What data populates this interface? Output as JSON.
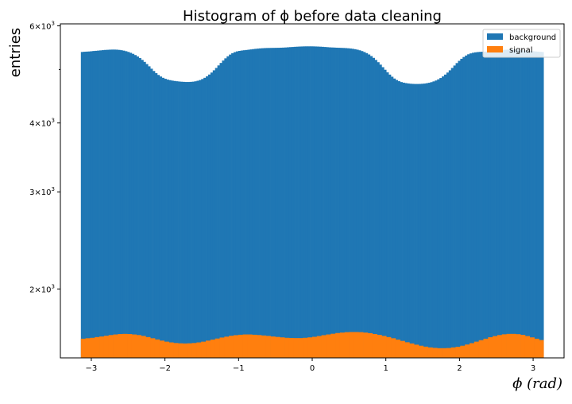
{
  "chart_data": {
    "type": "bar",
    "title": "Histogram of ϕ before data cleaning",
    "xlabel": "ϕ (rad)",
    "ylabel": "entries",
    "y_scale": "log",
    "xlim": [
      -3.42,
      3.42
    ],
    "ylim": [
      1500,
      6050
    ],
    "x_ticks": [
      -3,
      -2,
      -1,
      0,
      1,
      2,
      3
    ],
    "x_tick_labels": [
      "−3",
      "−2",
      "−1",
      "0",
      "1",
      "2",
      "3"
    ],
    "y_ticks": [
      {
        "value": 2000,
        "mantissa": "2",
        "base": "10",
        "exp": "3"
      },
      {
        "value": 3000,
        "mantissa": "3",
        "base": "10",
        "exp": "3"
      },
      {
        "value": 4000,
        "mantissa": "4",
        "base": "10",
        "exp": "3"
      },
      {
        "value": 6000,
        "mantissa": "6",
        "base": "10",
        "exp": "3"
      }
    ],
    "y_minor_ticks": [
      5000
    ],
    "stacked": false,
    "grid": false,
    "legend_position": "top-right",
    "series": [
      {
        "name": "background",
        "color": "#1f77b4",
        "x_range": [
          -3.1416,
          3.1416
        ],
        "bins": 200,
        "values": [
          5380,
          5385,
          5388,
          5391,
          5396,
          5402,
          5406,
          5411,
          5416,
          5421,
          5426,
          5429,
          5432,
          5434,
          5434,
          5432,
          5427,
          5420,
          5410,
          5397,
          5381,
          5361,
          5338,
          5311,
          5280,
          5245,
          5205,
          5162,
          5115,
          5067,
          5017,
          4969,
          4926,
          4888,
          4856,
          4830,
          4810,
          4794,
          4783,
          4774,
          4767,
          4761,
          4756,
          4752,
          4749,
          4747,
          4747,
          4749,
          4753,
          4760,
          4771,
          4785,
          4805,
          4830,
          4860,
          4896,
          4937,
          4983,
          5033,
          5086,
          5139,
          5191,
          5239,
          5284,
          5322,
          5353,
          5376,
          5393,
          5404,
          5412,
          5419,
          5425,
          5431,
          5438,
          5445,
          5451,
          5456,
          5461,
          5465,
          5468,
          5470,
          5471,
          5472,
          5473,
          5474,
          5475,
          5477,
          5479,
          5482,
          5486,
          5490,
          5493,
          5497,
          5500,
          5503,
          5505,
          5507,
          5508,
          5508,
          5508,
          5507,
          5505,
          5503,
          5500,
          5497,
          5493,
          5489,
          5485,
          5482,
          5480,
          5477,
          5475,
          5473,
          5471,
          5468,
          5464,
          5459,
          5452,
          5443,
          5432,
          5418,
          5400,
          5379,
          5354,
          5324,
          5289,
          5249,
          5204,
          5155,
          5103,
          5049,
          4995,
          4943,
          4895,
          4852,
          4815,
          4785,
          4762,
          4745,
          4733,
          4724,
          4717,
          4712,
          4709,
          4707,
          4707,
          4708,
          4711,
          4715,
          4722,
          4731,
          4743,
          4758,
          4776,
          4799,
          4826,
          4858,
          4895,
          4937,
          4983,
          5033,
          5084,
          5136,
          5184,
          5229,
          5268,
          5301,
          5328,
          5348,
          5362,
          5372,
          5378,
          5382,
          5385,
          5388,
          5391,
          5394,
          5398,
          5403,
          5408,
          5414,
          5420,
          5425,
          5430,
          5433,
          5434,
          5434,
          5433,
          5430,
          5426,
          5421,
          5416,
          5411,
          5406,
          5401,
          5396,
          5391,
          5387,
          5383,
          5380
        ]
      },
      {
        "name": "signal",
        "color": "#ff7f0e",
        "x_range": [
          -3.1416,
          3.1416
        ],
        "bins": 100,
        "values": [
          1625,
          1628,
          1631,
          1636,
          1640,
          1645,
          1650,
          1654,
          1657,
          1658,
          1657,
          1654,
          1650,
          1644,
          1636,
          1628,
          1620,
          1612,
          1605,
          1600,
          1596,
          1594,
          1593,
          1594,
          1596,
          1600,
          1605,
          1612,
          1619,
          1626,
          1633,
          1639,
          1645,
          1649,
          1652,
          1654,
          1654,
          1652,
          1650,
          1647,
          1644,
          1640,
          1637,
          1634,
          1631,
          1630,
          1629,
          1629,
          1631,
          1634,
          1638,
          1643,
          1649,
          1654,
          1659,
          1664,
          1667,
          1670,
          1671,
          1671,
          1670,
          1667,
          1663,
          1657,
          1651,
          1644,
          1636,
          1628,
          1619,
          1610,
          1601,
          1593,
          1585,
          1578,
          1572,
          1567,
          1564,
          1562,
          1562,
          1563,
          1567,
          1571,
          1578,
          1586,
          1595,
          1605,
          1615,
          1625,
          1635,
          1643,
          1650,
          1655,
          1658,
          1658,
          1656,
          1651,
          1643,
          1634,
          1625,
          1616
        ]
      }
    ]
  }
}
